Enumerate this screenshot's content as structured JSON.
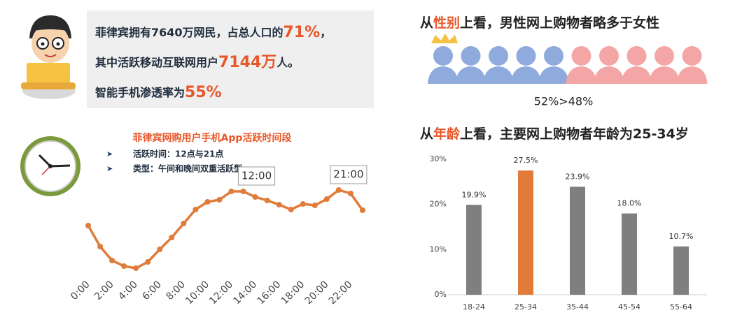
{
  "intro": [
    [
      "菲律宾拥有7640万网民，占总人口的",
      "71%",
      "，"
    ],
    [
      "其中活跃移动互联网用户",
      "7144万",
      "人。"
    ],
    [
      "智能手机渗透率为",
      "55%"
    ]
  ],
  "gender": {
    "title": [
      "从",
      "性别",
      "上看，男性网上购物者略多于女性"
    ],
    "label": "52%>48%"
  },
  "chart_data": [
    {
      "type": "line",
      "title": "菲律宾网购用户手机App活跃时间段",
      "bullets": [
        "活跃时间：12点与21点",
        "类型：午间和晚间双重活跃型"
      ],
      "x": [
        0,
        1,
        2,
        3,
        4,
        5,
        6,
        7,
        8,
        9,
        10,
        11,
        12,
        13,
        14,
        15,
        16,
        17,
        18,
        19,
        20,
        21,
        22,
        23
      ],
      "values": [
        77,
        47,
        27,
        19,
        16,
        25,
        43,
        60,
        80,
        100,
        111,
        114,
        126,
        126,
        118,
        113,
        107,
        100,
        108,
        106,
        115,
        128,
        123,
        99
      ],
      "color": "#e07b39",
      "xticks": [
        {
          "value": 0,
          "label": "0:00"
        },
        {
          "value": 2,
          "label": "2:00"
        },
        {
          "value": 4,
          "label": "4:00"
        },
        {
          "value": 6,
          "label": "6:00"
        },
        {
          "value": 8,
          "label": "8:00"
        },
        {
          "value": 10,
          "label": "10:00"
        },
        {
          "value": 12,
          "label": "12:00"
        },
        {
          "value": 14,
          "label": "14:00"
        },
        {
          "value": 16,
          "label": "16:00"
        },
        {
          "value": 18,
          "label": "18:00"
        },
        {
          "value": 20,
          "label": "20:00"
        },
        {
          "value": 22,
          "label": "22:00"
        }
      ],
      "annotations": [
        {
          "x": 12,
          "label": "12:00"
        },
        {
          "x": 21,
          "label": "21:00"
        }
      ]
    },
    {
      "type": "bar",
      "title": [
        "从",
        "年龄",
        "上看，主要网上购物者年龄为25-34岁"
      ],
      "categories": [
        "18-24",
        "25-34",
        "35-44",
        "45-54",
        "55-64"
      ],
      "values": [
        19.9,
        27.5,
        23.9,
        18.0,
        10.7
      ],
      "value_labels": [
        "19.9%",
        "27.5%",
        "23.9%",
        "18.0%",
        "10.7%"
      ],
      "colors": [
        "#7f7f7f",
        "#e07b39",
        "#7f7f7f",
        "#7f7f7f",
        "#7f7f7f"
      ],
      "ylim": [
        0,
        30
      ],
      "yticks": [
        {
          "value": 0,
          "label": "0%"
        },
        {
          "value": 10,
          "label": "10%"
        },
        {
          "value": 20,
          "label": "20%"
        },
        {
          "value": 30,
          "label": "30%"
        }
      ]
    }
  ]
}
